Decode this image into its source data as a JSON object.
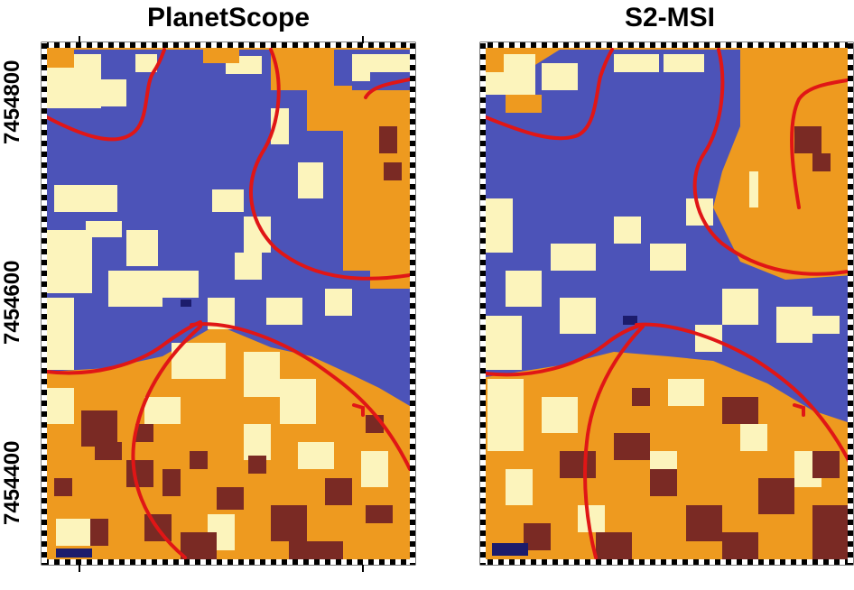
{
  "panels": [
    {
      "title": "PlanetScope"
    },
    {
      "title": "S2-MSI"
    }
  ],
  "y_axis": {
    "tick_labels": [
      "7454800",
      "7454600",
      "7454400"
    ]
  },
  "colors": {
    "water": "#4c53b8",
    "pale": "#fcf4bc",
    "orange": "#ee9a1f",
    "dark": "#7a2a24",
    "navy": "#1c1c6c",
    "boundary": "#e01616",
    "frame_dark": "#000000",
    "frame_light": "#ffffff"
  }
}
